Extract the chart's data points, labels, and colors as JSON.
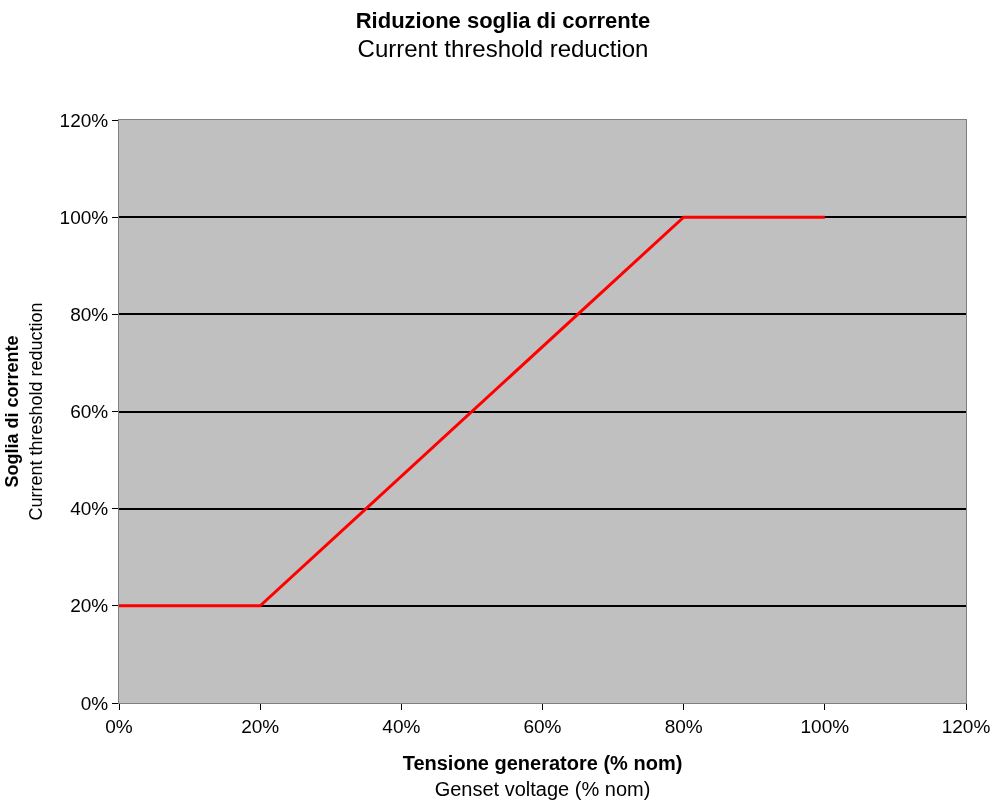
{
  "chart_data": {
    "type": "line",
    "title": "Riduzione soglia di corrente",
    "subtitle": "Current threshold reduction",
    "xlabel": "Tensione generatore (% nom)\nGenset voltage (% nom)",
    "ylabel": "Soglia di corrente\nCurrent threshold reduction",
    "x": [
      0,
      20,
      80,
      100
    ],
    "series": [
      {
        "color": "#ff0000",
        "values": [
          20,
          20,
          100,
          100
        ]
      }
    ],
    "xlim": [
      0,
      120
    ],
    "xticks": [
      {
        "value": 0,
        "label": "0%"
      },
      {
        "value": 20,
        "label": "20%"
      },
      {
        "value": 40,
        "label": "40%"
      },
      {
        "value": 60,
        "label": "60%"
      },
      {
        "value": 80,
        "label": "80%"
      },
      {
        "value": 100,
        "label": "100%"
      },
      {
        "value": 120,
        "label": "120%"
      }
    ],
    "ylim": [
      0,
      120
    ],
    "yticks": [
      {
        "value": 0,
        "label": "0%"
      },
      {
        "value": 20,
        "label": "20%"
      },
      {
        "value": 40,
        "label": "40%"
      },
      {
        "value": 60,
        "label": "60%"
      },
      {
        "value": 80,
        "label": "80%"
      },
      {
        "value": 100,
        "label": "100%"
      },
      {
        "value": 120,
        "label": "120%"
      }
    ],
    "grid": "y",
    "marker": "none",
    "line_style": "solid"
  }
}
